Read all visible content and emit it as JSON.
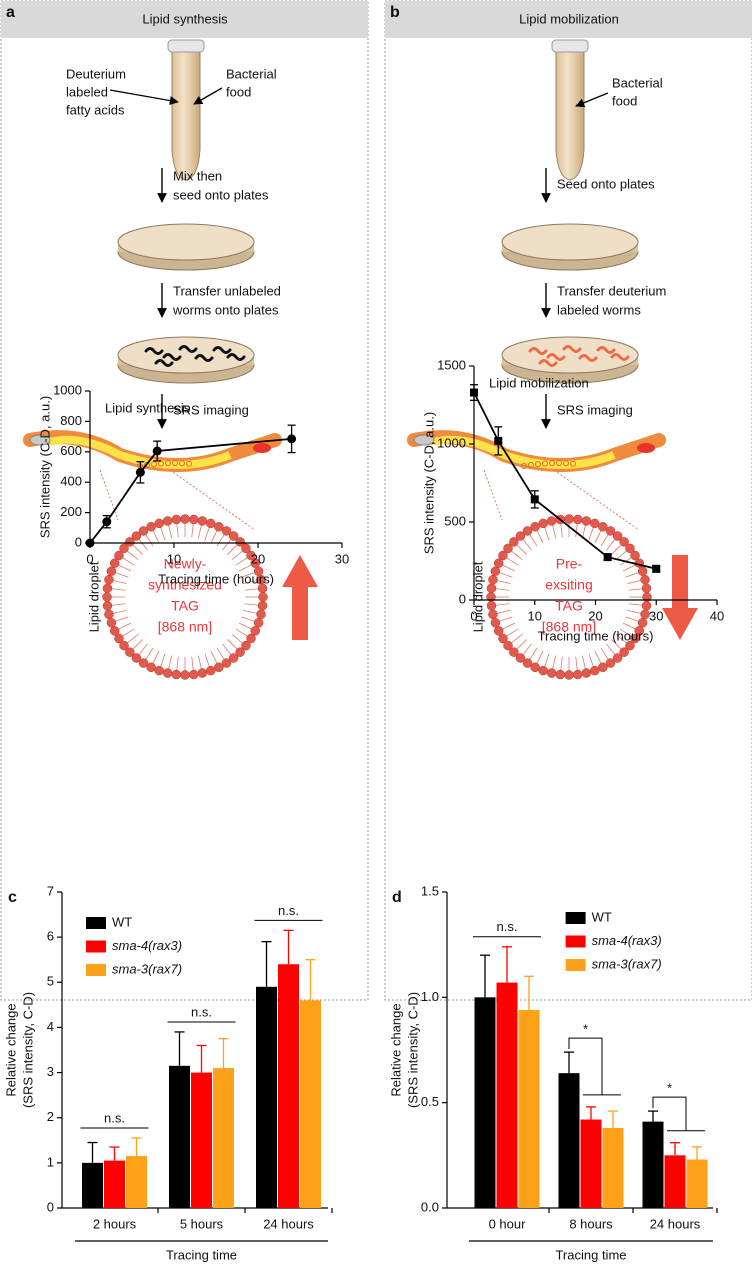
{
  "panels": [
    {
      "letter": "a",
      "header": "Lipid synthesis",
      "tube_labels": [
        [
          "Deuterium",
          "labeled",
          "fatty acids"
        ],
        [
          "Bacterial",
          "food"
        ]
      ],
      "steps": [
        [
          "Mix then",
          "seed onto plates"
        ],
        [
          "Transfer unlabeled",
          "worms onto plates"
        ],
        [
          "SRS imaging"
        ]
      ],
      "droplet_label": "Lipid droplet",
      "droplet_text": [
        "Newly-",
        "synthesized",
        "TAG",
        "[868 nm]"
      ]
    },
    {
      "letter": "b",
      "header": "Lipid mobilization",
      "tube_labels": [
        [
          "Bacterial",
          "food"
        ]
      ],
      "steps": [
        [
          "Seed onto plates"
        ],
        [
          "Transfer deuterium",
          "labeled worms"
        ],
        [
          "SRS imaging"
        ]
      ],
      "droplet_label": "Lipid droplet",
      "droplet_text": [
        "Pre-",
        "exsiting",
        "TAG",
        "[868 nm]"
      ]
    }
  ],
  "figure_letters": [
    "c",
    "d"
  ],
  "chart_data": [
    {
      "type": "line",
      "title": "Lipid synthesis",
      "x_label": "Tracing time (hours)",
      "y_label": [
        "SRS intensity (C-D, a.u.)"
      ],
      "x": [
        0,
        2,
        6,
        8,
        24
      ],
      "series": [
        {
          "values": [
            0,
            140,
            465,
            605,
            685
          ],
          "errors": [
            null,
            40,
            70,
            65,
            90
          ],
          "color": "#000000",
          "marker": "circle"
        }
      ],
      "xlim": [
        0,
        30
      ],
      "xticks": [
        0,
        10,
        20,
        30
      ],
      "ylim": [
        0,
        1000
      ],
      "yticks": [
        0,
        200,
        400,
        600,
        800,
        1000
      ]
    },
    {
      "type": "line",
      "title": "Lipid mobilization",
      "x_label": "Tracing time (hours)",
      "y_label": [
        "SRS intensity (C-D, a.u.)"
      ],
      "x": [
        0,
        4,
        10,
        22,
        30
      ],
      "series": [
        {
          "values": [
            1330,
            1020,
            645,
            275,
            200
          ],
          "errors": [
            50,
            90,
            55,
            20,
            20
          ],
          "color": "#000000",
          "marker": "square"
        }
      ],
      "xlim": [
        0,
        40
      ],
      "xticks": [
        0,
        10,
        20,
        30,
        40
      ],
      "ylim": [
        0,
        1500
      ],
      "yticks": [
        0,
        500,
        1000,
        1500
      ]
    },
    {
      "type": "bar",
      "x_label": "Tracing time",
      "y_label": [
        "Relative change",
        "(SRS intensity, C-D)"
      ],
      "categories": [
        "2 hours",
        "5 hours",
        "24 hours"
      ],
      "series": [
        {
          "name": "WT",
          "color": "#000000",
          "values": [
            1.0,
            3.15,
            4.9
          ],
          "errors": [
            0.45,
            0.75,
            1.0
          ]
        },
        {
          "name": "sma-4(rax3)",
          "color": "#ff0000",
          "values": [
            1.05,
            3.0,
            5.4
          ],
          "errors": [
            0.3,
            0.6,
            0.75
          ]
        },
        {
          "name": "sma-3(rax7)",
          "color": "#ffa21a",
          "values": [
            1.15,
            3.1,
            4.6
          ],
          "errors": [
            0.4,
            0.65,
            0.9
          ]
        }
      ],
      "ylim": [
        0,
        7
      ],
      "yticks": [
        0,
        1,
        2,
        3,
        4,
        5,
        6,
        7
      ],
      "legend": "upper left",
      "annotations": [
        {
          "text": "n.s.",
          "category": 0,
          "kind": "line"
        },
        {
          "text": "n.s.",
          "category": 1,
          "kind": "line"
        },
        {
          "text": "n.s.",
          "category": 2,
          "kind": "line"
        }
      ]
    },
    {
      "type": "bar",
      "x_label": "Tracing time",
      "y_label": [
        "Relative change",
        "(SRS intensity, C-D)"
      ],
      "categories": [
        "0 hour",
        "8 hours",
        "24 hours"
      ],
      "series": [
        {
          "name": "WT",
          "color": "#000000",
          "values": [
            1.0,
            0.64,
            0.41
          ],
          "errors": [
            0.2,
            0.1,
            0.05
          ]
        },
        {
          "name": "sma-4(rax3)",
          "color": "#ff0000",
          "values": [
            1.07,
            0.42,
            0.25
          ],
          "errors": [
            0.17,
            0.06,
            0.06
          ]
        },
        {
          "name": "sma-3(rax7)",
          "color": "#ffa21a",
          "values": [
            0.94,
            0.38,
            0.23
          ],
          "errors": [
            0.16,
            0.08,
            0.06
          ]
        }
      ],
      "ylim": [
        0,
        1.5
      ],
      "yticks": [
        {
          "value": 0,
          "label": "0.0"
        },
        0.5,
        {
          "value": 1,
          "label": "1.0"
        },
        1.5
      ],
      "legend": "upper right",
      "annotations": [
        {
          "text": "n.s.",
          "category": 0,
          "kind": "line"
        },
        {
          "text": "*",
          "category": 1,
          "kind": "bracket"
        },
        {
          "text": "*",
          "category": 2,
          "kind": "bracket"
        }
      ]
    }
  ]
}
